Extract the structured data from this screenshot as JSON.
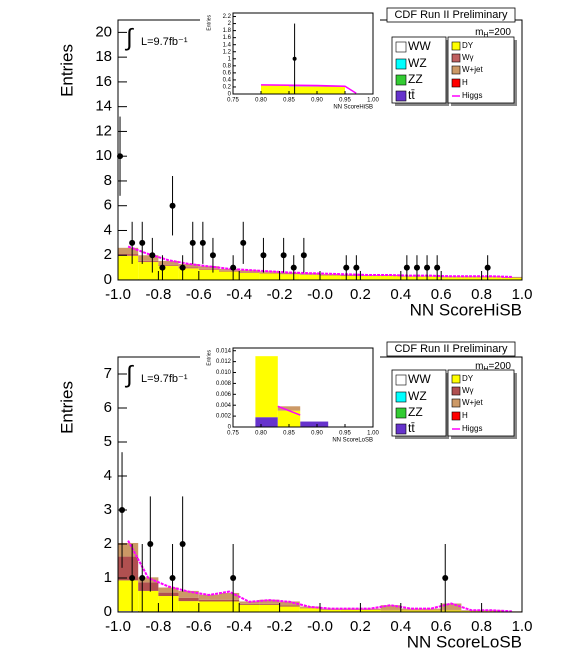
{
  "chart_data": [
    {
      "type": "stacked-histogram",
      "title": "CDF Run II Preliminary",
      "integral": "∫",
      "lumi": "L=9.7fb⁻¹",
      "mass_symbol": "m",
      "mass_subscript": "H",
      "mass_value": "=200",
      "x_label": "NN ScoreHiSB",
      "y_label": "Entries",
      "bins": [
        -1,
        -0.9,
        -0.8,
        -0.7,
        -0.6,
        -0.5,
        -0.4,
        -0.3,
        -0.2,
        -0.1,
        0,
        0.1,
        0.2,
        0.3,
        0.4,
        0.5,
        0.6,
        0.7,
        0.8,
        0.9,
        1
      ],
      "xlim": [
        -1,
        1
      ],
      "ylim": [
        0,
        21
      ],
      "xticks": [
        {
          "value": -1,
          "label": "-1.0"
        },
        -0.8,
        -0.6,
        -0.4,
        -0.2,
        {
          "value": 0,
          "label": "-0.0"
        },
        0.2,
        0.4,
        0.6,
        0.8,
        {
          "value": 1,
          "label": "1.0"
        }
      ],
      "yticks": [
        0,
        2,
        4,
        6,
        8,
        10,
        12,
        14,
        16,
        18,
        20
      ],
      "series": [
        {
          "name": "WW",
          "color": "#ffffff",
          "values": [
            0.05,
            0.05,
            0.04,
            0.04,
            0.03,
            0.03,
            0.03,
            0.03,
            0.02,
            0.02,
            0.02,
            0.02,
            0.02,
            0.02,
            0.02,
            0.02,
            0.02,
            0.02,
            0.02,
            0.02
          ]
        },
        {
          "name": "WZ",
          "color": "#00ffff",
          "values": [
            0,
            0,
            0,
            0,
            0,
            0,
            0,
            0,
            0,
            0,
            0,
            0,
            0,
            0,
            0,
            0,
            0,
            0,
            0,
            0
          ]
        },
        {
          "name": "ZZ",
          "color": "#33cc33",
          "values": [
            0,
            0,
            0,
            0,
            0,
            0,
            0,
            0,
            0,
            0,
            0,
            0,
            0,
            0,
            0,
            0,
            0,
            0,
            0,
            0
          ]
        },
        {
          "name": "tt̄",
          "color": "#6633cc",
          "values": [
            0,
            0,
            0,
            0,
            0,
            0,
            0,
            0,
            0,
            0,
            0,
            0,
            0,
            0,
            0,
            0,
            0,
            0,
            0,
            0
          ]
        },
        {
          "name": "DY",
          "color": "#ffff00",
          "values": [
            1.9,
            1.4,
            1.1,
            0.9,
            0.8,
            0.65,
            0.55,
            0.5,
            0.45,
            0.4,
            0.35,
            0.3,
            0.3,
            0.3,
            0.25,
            0.25,
            0.2,
            0.2,
            0.2,
            0.15
          ]
        },
        {
          "name": "Wγ",
          "color": "#c06060",
          "values": [
            0.15,
            0.1,
            0.1,
            0.1,
            0.08,
            0.07,
            0.06,
            0.05,
            0.05,
            0.05,
            0.04,
            0.04,
            0.03,
            0.03,
            0.03,
            0.03,
            0.03,
            0.03,
            0.03,
            0.03
          ]
        },
        {
          "name": "W+jet",
          "color": "#cc9966",
          "values": [
            0.5,
            0.45,
            0.3,
            0.25,
            0.2,
            0.15,
            0.15,
            0.12,
            0.08,
            0.08,
            0.08,
            0.08,
            0.05,
            0.05,
            0.05,
            0.05,
            0.05,
            0.05,
            0.05,
            0.05
          ]
        },
        {
          "name": "H",
          "color": "#ff0000",
          "values": [
            0,
            0,
            0,
            0,
            0,
            0,
            0,
            0,
            0,
            0,
            0,
            0,
            0,
            0,
            0,
            0,
            0,
            0,
            0,
            0
          ]
        },
        {
          "name": "Higgs",
          "type": "line",
          "color": "#ff00ff",
          "x": [
            -0.95,
            -0.85,
            -0.75,
            -0.65,
            -0.55,
            -0.45,
            -0.35,
            -0.25,
            -0.15,
            -0.05,
            0.05,
            0.15,
            0.25,
            0.35,
            0.45,
            0.55,
            0.65,
            0.75,
            0.85,
            0.95
          ],
          "values": [
            2.7,
            2.1,
            1.6,
            1.3,
            1.1,
            0.9,
            0.8,
            0.7,
            0.6,
            0.55,
            0.5,
            0.45,
            0.4,
            0.4,
            0.35,
            0.35,
            0.3,
            0.3,
            0.3,
            0.25
          ]
        }
      ],
      "data": {
        "x": [
          -0.99,
          -0.93,
          -0.88,
          -0.83,
          -0.78,
          -0.73,
          -0.68,
          -0.63,
          -0.58,
          -0.53,
          -0.43,
          -0.38,
          -0.28,
          -0.18,
          -0.13,
          -0.08,
          0.13,
          0.18,
          0.43,
          0.48,
          0.53,
          0.58,
          0.83
        ],
        "values": [
          10,
          3,
          3,
          2,
          1,
          6,
          1,
          3,
          3,
          2,
          1,
          3,
          2,
          2,
          1,
          2,
          1,
          1,
          1,
          1,
          1,
          1,
          1
        ],
        "errors": [
          3.2,
          1.7,
          1.7,
          1.4,
          1,
          2.4,
          1,
          1.7,
          1.7,
          1.4,
          1,
          1.7,
          1.4,
          1.4,
          1,
          1.4,
          1,
          1,
          1,
          1,
          1,
          1,
          1
        ]
      },
      "inset": {
        "type": "stacked-histogram",
        "x_label": "NN ScoreHiSB",
        "y_label": "Entries",
        "bins": [
          0.75,
          0.8,
          0.85,
          0.9,
          0.95,
          1
        ],
        "xlim": [
          0.75,
          1
        ],
        "ylim": [
          0,
          2.3
        ],
        "xticks": [
          0.75,
          {
            "value": 0.8,
            "label": "0.80"
          },
          0.85,
          {
            "value": 0.9,
            "label": "0.90"
          },
          0.95,
          {
            "value": 1,
            "label": "1.00"
          }
        ],
        "yticks": [
          0,
          0.2,
          0.4,
          0.6,
          0.8,
          1,
          1.2,
          1.4,
          1.6,
          1.8,
          2,
          2.2
        ],
        "series": [
          {
            "color": "#ffff00",
            "values": [
              0,
              0.24,
              0.2,
              0.2,
              0.01
            ]
          },
          {
            "color": "#cc9966",
            "values": [
              0,
              0.02,
              0.02,
              0.02,
              0
            ]
          },
          {
            "type": "line",
            "color": "#ff00ff",
            "x": [
              0.8,
              0.9,
              0.95,
              0.97
            ],
            "values": [
              0.26,
              0.24,
              0.22,
              0.02
            ]
          }
        ],
        "data": {
          "x": [
            0.86
          ],
          "values": [
            1
          ],
          "errors": [
            1
          ]
        }
      }
    },
    {
      "type": "stacked-histogram",
      "title": "CDF Run II Preliminary",
      "integral": "∫",
      "lumi": "L=9.7fb⁻¹",
      "mass_symbol": "m",
      "mass_subscript": "H",
      "mass_value": "=200",
      "x_label": "NN ScoreLoSB",
      "y_label": "Entries",
      "bins": [
        -1,
        -0.9,
        -0.8,
        -0.7,
        -0.6,
        -0.5,
        -0.4,
        -0.3,
        -0.2,
        -0.1,
        0,
        0.1,
        0.2,
        0.3,
        0.4,
        0.5,
        0.6,
        0.7,
        0.8,
        0.9,
        1
      ],
      "xlim": [
        -1,
        1
      ],
      "ylim": [
        0,
        7.5
      ],
      "xticks": [
        {
          "value": -1,
          "label": "-1.0"
        },
        -0.8,
        -0.6,
        -0.4,
        -0.2,
        {
          "value": 0,
          "label": "-0.0"
        },
        0.2,
        0.4,
        0.6,
        0.8,
        {
          "value": 1,
          "label": "1.0"
        }
      ],
      "yticks": [
        0,
        1,
        2,
        3,
        4,
        5,
        6,
        7
      ],
      "series": [
        {
          "name": "WW",
          "color": "#ffffff",
          "values": [
            0.03,
            0.02,
            0.02,
            0.02,
            0.01,
            0.01,
            0.01,
            0.01,
            0.01,
            0.01,
            0,
            0,
            0,
            0,
            0,
            0,
            0,
            0,
            0,
            0
          ]
        },
        {
          "name": "WZ",
          "color": "#00ffff",
          "values": [
            0,
            0,
            0,
            0,
            0,
            0,
            0,
            0,
            0,
            0,
            0,
            0,
            0,
            0,
            0,
            0,
            0,
            0,
            0,
            0
          ]
        },
        {
          "name": "ZZ",
          "color": "#33cc33",
          "values": [
            0,
            0,
            0,
            0,
            0,
            0,
            0,
            0,
            0,
            0,
            0,
            0,
            0,
            0,
            0,
            0,
            0,
            0,
            0,
            0
          ]
        },
        {
          "name": "tt̄",
          "color": "#6633cc",
          "values": [
            0,
            0,
            0,
            0,
            0,
            0,
            0,
            0,
            0,
            0,
            0,
            0,
            0,
            0,
            0,
            0,
            0,
            0,
            0,
            0
          ]
        },
        {
          "name": "DY",
          "color": "#ffff00",
          "values": [
            0.9,
            0.6,
            0.45,
            0.3,
            0.3,
            0.3,
            0.2,
            0.2,
            0.15,
            0.1,
            0.06,
            0.06,
            0.06,
            0.05,
            0.05,
            0.05,
            0.05,
            0.03,
            0.03,
            0.01
          ]
        },
        {
          "name": "Wγ",
          "color": "#b05050",
          "values": [
            0.7,
            0.25,
            0.1,
            0.1,
            0.05,
            0.05,
            0.03,
            0.03,
            0.03,
            0.01,
            0.01,
            0.01,
            0.01,
            0.01,
            0.01,
            0.01,
            0.01,
            0.01,
            0.01,
            0
          ]
        },
        {
          "name": "W+jet",
          "color": "#cc9966",
          "values": [
            0.4,
            0.15,
            0.15,
            0.2,
            0.15,
            0.2,
            0.07,
            0.12,
            0.12,
            0.04,
            0.03,
            0.03,
            0.03,
            0.14,
            0.04,
            0.04,
            0.19,
            0.01,
            0.01,
            0.01
          ]
        },
        {
          "name": "H",
          "color": "#ff0000",
          "values": [
            0,
            0,
            0,
            0,
            0,
            0,
            0,
            0,
            0,
            0,
            0,
            0,
            0,
            0,
            0,
            0,
            0,
            0,
            0,
            0
          ]
        },
        {
          "name": "Higgs",
          "type": "line",
          "color": "#ff00ff",
          "x": [
            -0.95,
            -0.85,
            -0.75,
            -0.65,
            -0.55,
            -0.45,
            -0.35,
            -0.25,
            -0.15,
            -0.05,
            0.05,
            0.15,
            0.25,
            0.35,
            0.45,
            0.55,
            0.65,
            0.75,
            0.85,
            0.95
          ],
          "values": [
            2.1,
            1.0,
            0.75,
            0.6,
            0.5,
            0.6,
            0.3,
            0.35,
            0.3,
            0.15,
            0.1,
            0.1,
            0.1,
            0.2,
            0.1,
            0.1,
            0.25,
            0.05,
            0.05,
            0.02
          ]
        }
      ],
      "data": {
        "x": [
          -0.98,
          -0.93,
          -0.88,
          -0.84,
          -0.73,
          -0.68,
          -0.43,
          0.62
        ],
        "values": [
          3,
          1,
          1,
          2,
          1,
          2,
          1,
          1
        ],
        "errors": [
          1.7,
          1,
          1,
          1.4,
          1,
          1.4,
          1,
          1
        ]
      },
      "inset": {
        "type": "stacked-histogram",
        "x_label": "NN ScoreLoSB",
        "y_label": "Entries",
        "bins": [
          0.75,
          0.79,
          0.83,
          0.87,
          0.92,
          1
        ],
        "xlim": [
          0.75,
          1
        ],
        "ylim": [
          0,
          0.0145
        ],
        "xticks": [
          0.75,
          {
            "value": 0.8,
            "label": "0.80"
          },
          0.85,
          {
            "value": 0.9,
            "label": "0.90"
          },
          0.95,
          {
            "value": 1,
            "label": "1.00"
          }
        ],
        "yticks": [
          0,
          0.002,
          0.004,
          0.006,
          0.008,
          {
            "value": 0.01,
            "label": "0.010"
          },
          0.012,
          0.014
        ],
        "series": [
          {
            "color": "#6633cc",
            "values": [
              0,
              0.0018,
              0,
              0.001,
              0
            ]
          },
          {
            "color": "#ffff00",
            "values": [
              0,
              0.0112,
              0.003,
              0,
              0
            ]
          },
          {
            "color": "#cc9966",
            "values": [
              0,
              0,
              0.0008,
              0,
              0
            ]
          },
          {
            "type": "line",
            "color": "#ff00ff",
            "x": [
              0.83,
              0.87
            ],
            "values": [
              0.0038,
              0.0022
            ]
          }
        ]
      }
    }
  ]
}
